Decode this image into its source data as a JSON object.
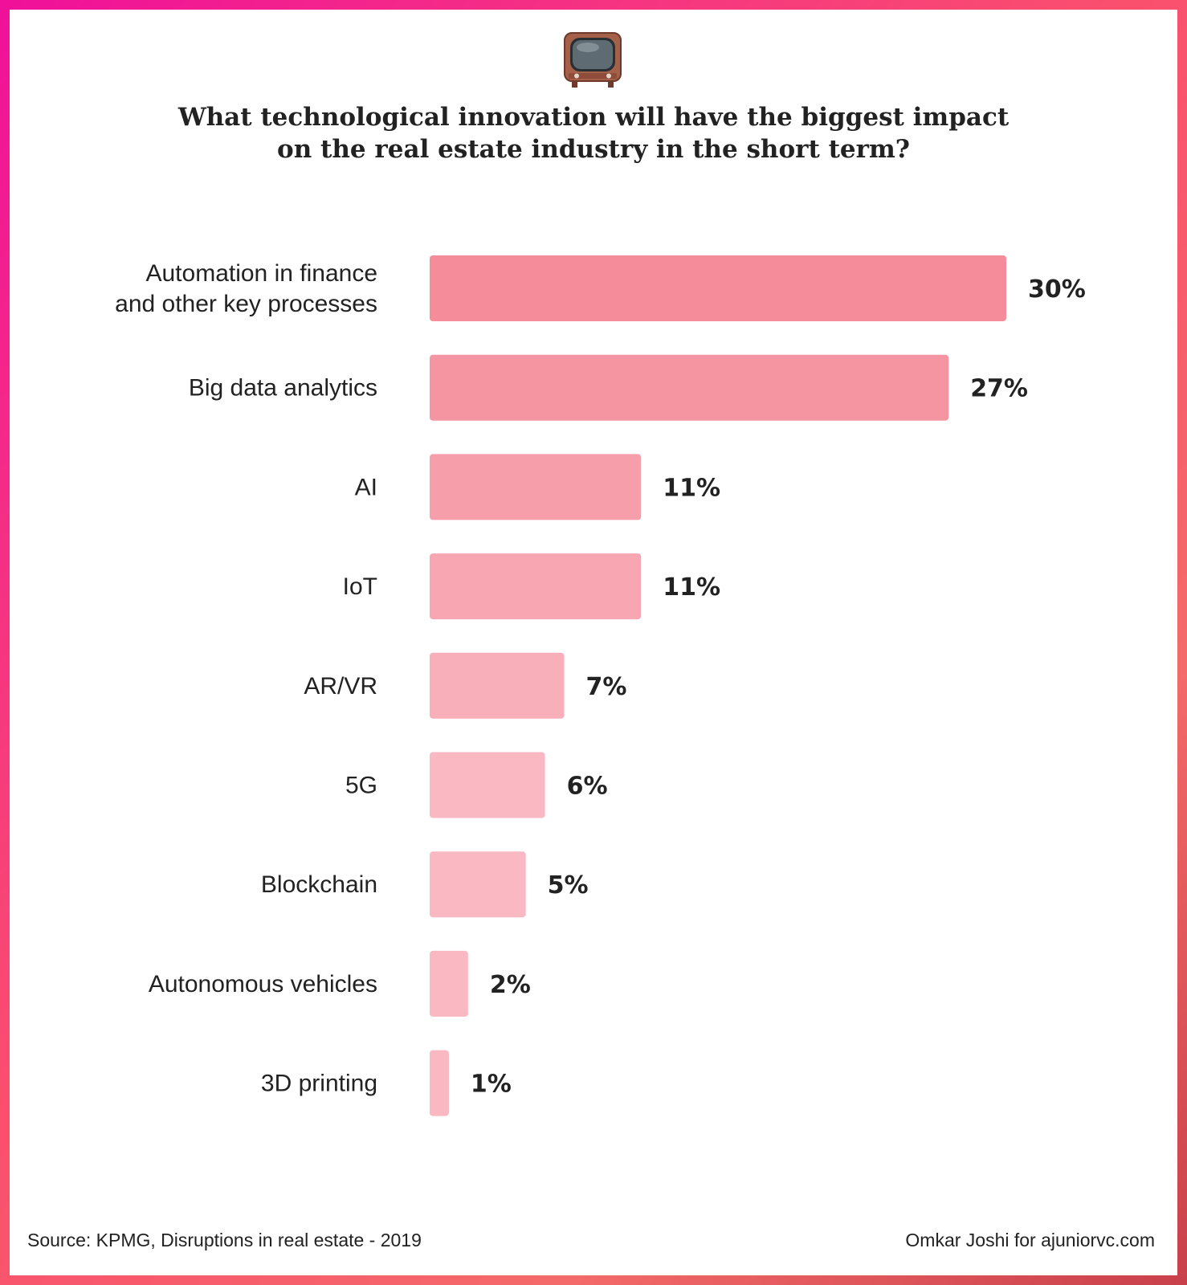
{
  "colors": {
    "frame_start": "#f0109a",
    "frame_end": "#c8404a",
    "bar_dark": "#f48c9a",
    "bar_light": "#f9b8c2",
    "text": "#222222"
  },
  "header": {
    "icon": "television-icon",
    "title_line1": "What technological innovation will have the biggest impact",
    "title_line2": "on the real estate industry in the short term?"
  },
  "chart_data": {
    "type": "bar",
    "orientation": "horizontal",
    "title": "What technological innovation will have the biggest impact on the real estate industry in the short term?",
    "categories": [
      [
        "Automation in finance",
        "and other key processes"
      ],
      [
        "Big data analytics"
      ],
      [
        "AI"
      ],
      [
        "IoT"
      ],
      [
        "AR/VR"
      ],
      [
        "5G"
      ],
      [
        "Blockchain"
      ],
      [
        "Autonomous  vehicles"
      ],
      [
        "3D printing"
      ]
    ],
    "values": [
      30,
      27,
      11,
      11,
      7,
      6,
      5,
      2,
      1
    ],
    "value_labels": [
      "30%",
      "27%",
      "11%",
      "11%",
      "7%",
      "6%",
      "5%",
      "2%",
      "1%"
    ],
    "unit": "%",
    "xlim": [
      0,
      30
    ],
    "grid": false,
    "legend": "none"
  },
  "footer": {
    "source": "Source: KPMG, Disruptions in real estate - 2019",
    "credit": "Omkar Joshi for ajuniorvc.com"
  }
}
